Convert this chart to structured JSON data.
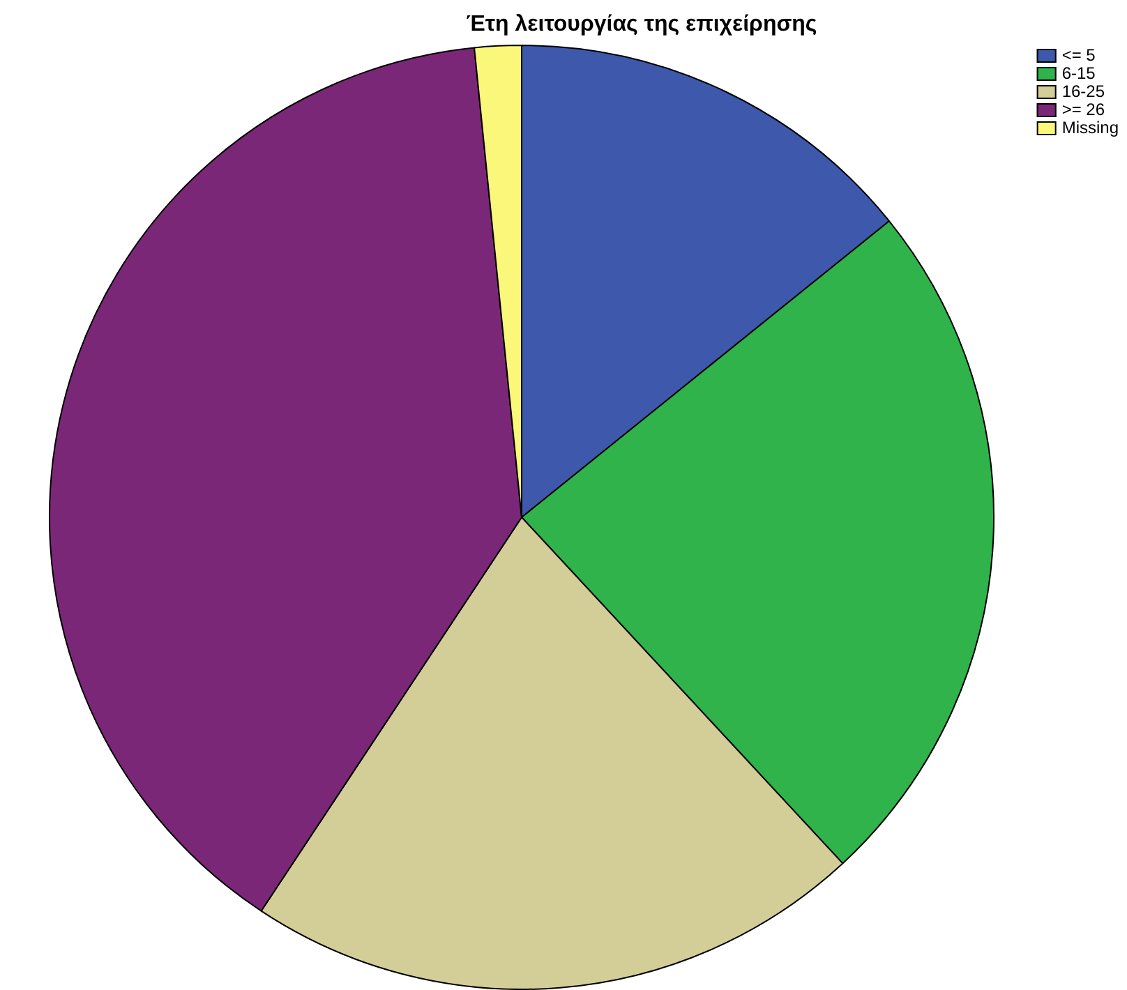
{
  "chart_data": {
    "type": "pie",
    "title": "Έτη λειτουργίας της επιχείρησης",
    "categories": [
      "<= 5",
      "6-15",
      "16-25",
      ">= 26",
      "Missing"
    ],
    "values": [
      14.2,
      23.9,
      21.2,
      39.1,
      1.6
    ],
    "colors": [
      "#3e58ac",
      "#2fb34a",
      "#d3ce97",
      "#7b2778",
      "#fbf77a"
    ],
    "legend": "top right"
  }
}
